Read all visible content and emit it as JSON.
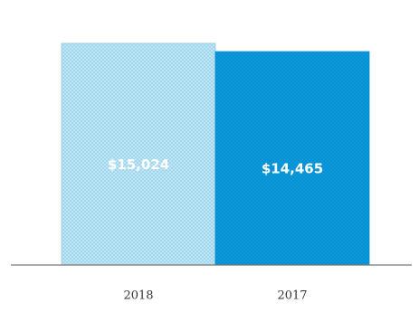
{
  "chart_data": {
    "type": "bar",
    "categories": [
      "2018",
      "2017"
    ],
    "values": [
      15024,
      14465
    ],
    "data_labels": [
      "$15,024",
      "$14,465"
    ],
    "ylim": [
      0,
      16000
    ],
    "grid": false,
    "legend": "none",
    "colors": [
      "#a9dcf0",
      "#0b97dc"
    ]
  }
}
